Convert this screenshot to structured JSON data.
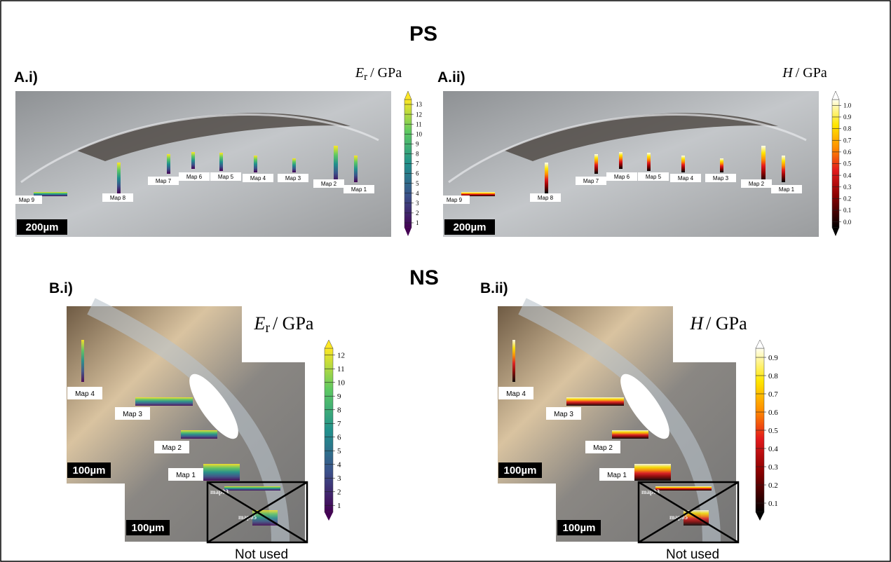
{
  "sections": [
    {
      "title": "PS"
    },
    {
      "title": "NS"
    }
  ],
  "panels": [
    {
      "label": "A.i)",
      "symbol": "E",
      "subscript": "r",
      "unit": "/ GPa",
      "colorbar_ticks": [
        "1",
        "2",
        "3",
        "4",
        "5",
        "6",
        "7",
        "8",
        "9",
        "10",
        "11",
        "12",
        "13"
      ],
      "maps": [
        "Map 1",
        "Map 2",
        "Map 3",
        "Map 4",
        "Map 5",
        "Map 6",
        "Map 7",
        "Map 8",
        "Map 9"
      ],
      "scale_bars": [
        "200µm"
      ]
    },
    {
      "label": "A.ii)",
      "symbol": "H",
      "unit": "/ GPa",
      "colorbar_ticks": [
        "0.0",
        "0.1",
        "0.2",
        "0.3",
        "0.4",
        "0.5",
        "0.6",
        "0.7",
        "0.8",
        "0.9",
        "1.0"
      ],
      "maps": [
        "Map 1",
        "Map 2",
        "Map 3",
        "Map 4",
        "Map 5",
        "Map 6",
        "Map 7",
        "Map 8",
        "Map 9"
      ],
      "scale_bars": [
        "200µm"
      ]
    },
    {
      "label": "B.i)",
      "symbol": "E",
      "subscript": "r",
      "unit": "/ GPa",
      "colorbar_ticks": [
        "1",
        "2",
        "3",
        "4",
        "5",
        "6",
        "7",
        "8",
        "9",
        "10",
        "11",
        "12"
      ],
      "maps": [
        "Map 1",
        "Map 2",
        "Map 3",
        "Map 4"
      ],
      "extra_maps": [
        "map03",
        "map05"
      ],
      "scale_bars": [
        "100µm",
        "100µm"
      ],
      "note": "Not used"
    },
    {
      "label": "B.ii)",
      "symbol": "H",
      "unit": "/ GPa",
      "colorbar_ticks": [
        "0.1",
        "0.2",
        "0.3",
        "0.4",
        "0.5",
        "0.6",
        "0.7",
        "0.8",
        "0.9"
      ],
      "maps": [
        "Map 1",
        "Map 2",
        "Map 3",
        "Map 4"
      ],
      "extra_maps": [
        "map03",
        "map05"
      ],
      "scale_bars": [
        "100µm",
        "100µm"
      ],
      "note": "Not used"
    }
  ]
}
